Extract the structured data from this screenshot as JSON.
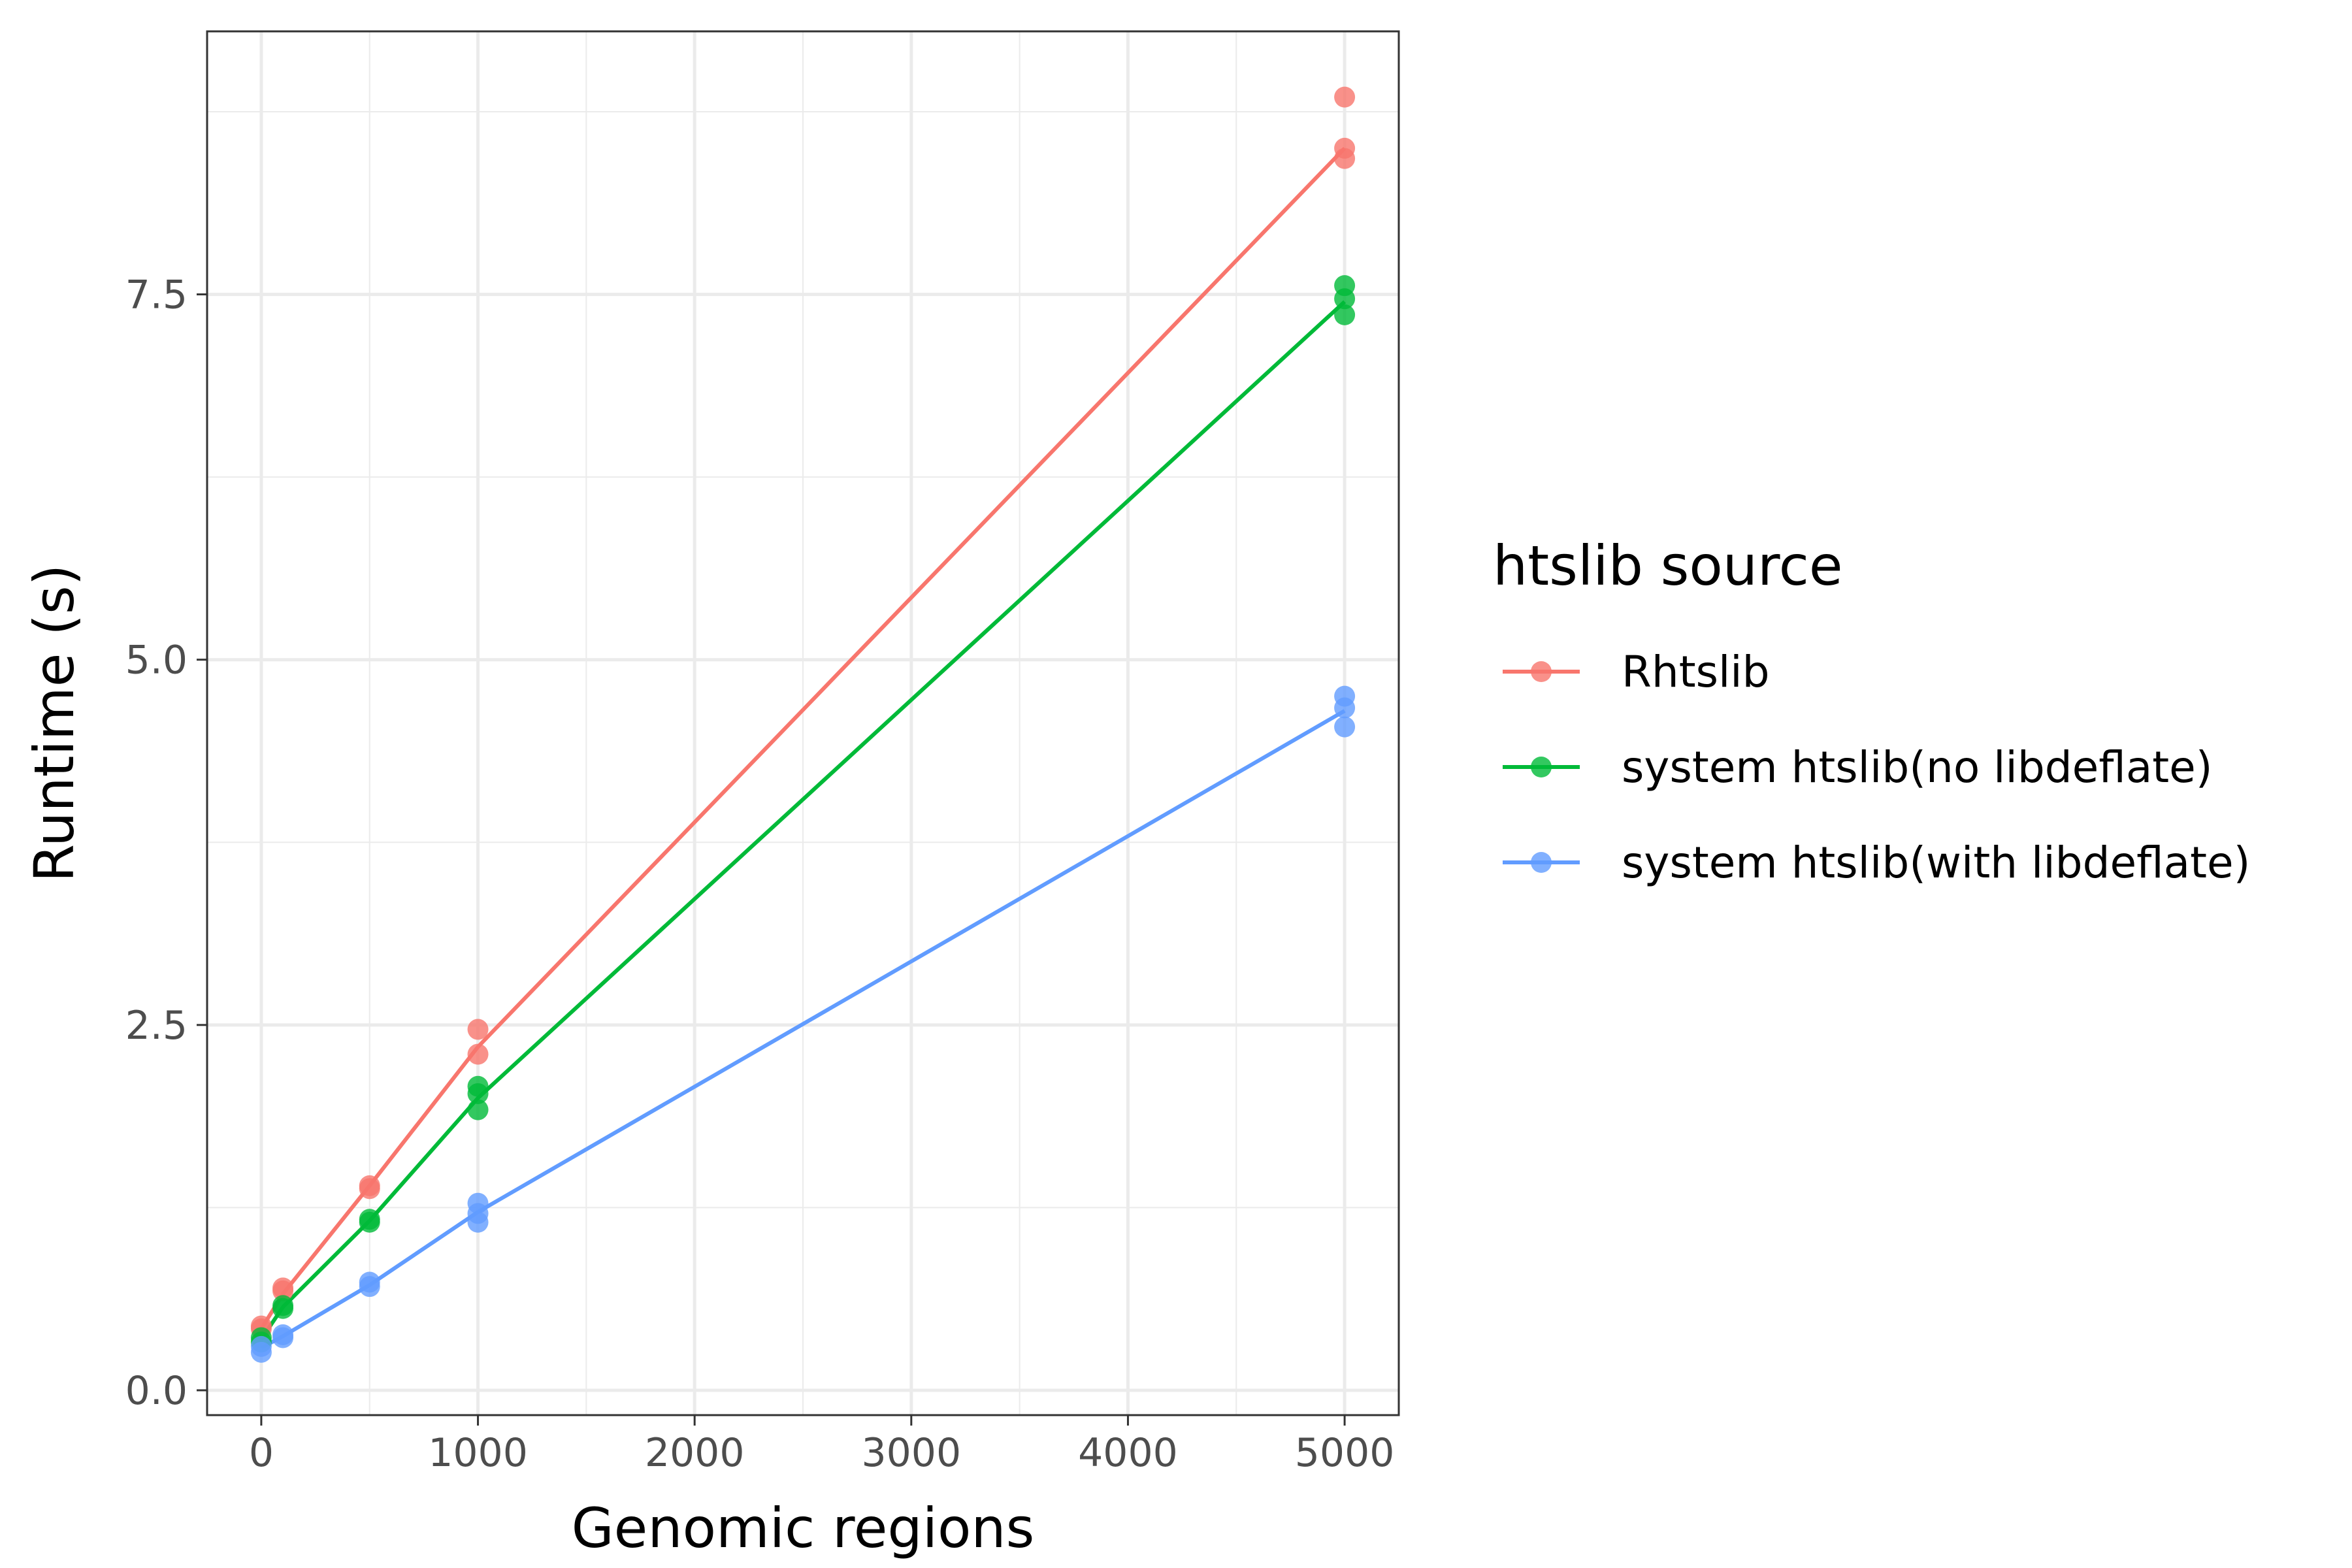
{
  "chart_data": {
    "type": "line",
    "xlabel": "Genomic regions",
    "ylabel": "Runtime (s)",
    "xlim": [
      -250,
      5250
    ],
    "ylim": [
      -0.17,
      9.3
    ],
    "x_ticks": [
      0,
      1000,
      2000,
      3000,
      4000,
      5000
    ],
    "x_tick_labels": [
      "0",
      "1000",
      "2000",
      "3000",
      "4000",
      "5000"
    ],
    "y_ticks": [
      0.0,
      2.5,
      5.0,
      7.5
    ],
    "y_tick_labels": [
      "0.0",
      "2.5",
      "5.0",
      "7.5"
    ],
    "grid": true,
    "legend": {
      "title": "htslib source",
      "placement": "right"
    },
    "series": [
      {
        "name": "Rhtslib",
        "color": "#F8766D",
        "line": [
          [
            0,
            0.42
          ],
          [
            100,
            0.66
          ],
          [
            500,
            1.4
          ],
          [
            1000,
            2.35
          ],
          [
            5000,
            8.5
          ]
        ],
        "points": [
          [
            0,
            0.44
          ],
          [
            0,
            0.42
          ],
          [
            100,
            0.7
          ],
          [
            100,
            0.68
          ],
          [
            500,
            1.4
          ],
          [
            500,
            1.38
          ],
          [
            1000,
            2.47
          ],
          [
            1000,
            2.3
          ],
          [
            5000,
            8.85
          ],
          [
            5000,
            8.5
          ],
          [
            5000,
            8.43
          ]
        ]
      },
      {
        "name": "system htslib(no libdeflate)",
        "color": "#00BA38",
        "line": [
          [
            0,
            0.35
          ],
          [
            100,
            0.57
          ],
          [
            500,
            1.16
          ],
          [
            1000,
            2.0
          ],
          [
            5000,
            7.45
          ]
        ],
        "points": [
          [
            0,
            0.36
          ],
          [
            0,
            0.33
          ],
          [
            100,
            0.58
          ],
          [
            100,
            0.56
          ],
          [
            500,
            1.17
          ],
          [
            500,
            1.15
          ],
          [
            1000,
            2.08
          ],
          [
            1000,
            2.03
          ],
          [
            1000,
            1.92
          ],
          [
            5000,
            7.56
          ],
          [
            5000,
            7.47
          ],
          [
            5000,
            7.36
          ]
        ]
      },
      {
        "name": "system htslib(with libdeflate)",
        "color": "#619CFF",
        "line": [
          [
            0,
            0.29
          ],
          [
            100,
            0.37
          ],
          [
            500,
            0.72
          ],
          [
            1000,
            1.22
          ],
          [
            5000,
            4.65
          ]
        ],
        "points": [
          [
            0,
            0.3
          ],
          [
            0,
            0.26
          ],
          [
            100,
            0.38
          ],
          [
            100,
            0.36
          ],
          [
            500,
            0.74
          ],
          [
            500,
            0.71
          ],
          [
            1000,
            1.28
          ],
          [
            1000,
            1.21
          ],
          [
            1000,
            1.15
          ],
          [
            5000,
            4.75
          ],
          [
            5000,
            4.67
          ],
          [
            5000,
            4.54
          ]
        ]
      }
    ]
  }
}
